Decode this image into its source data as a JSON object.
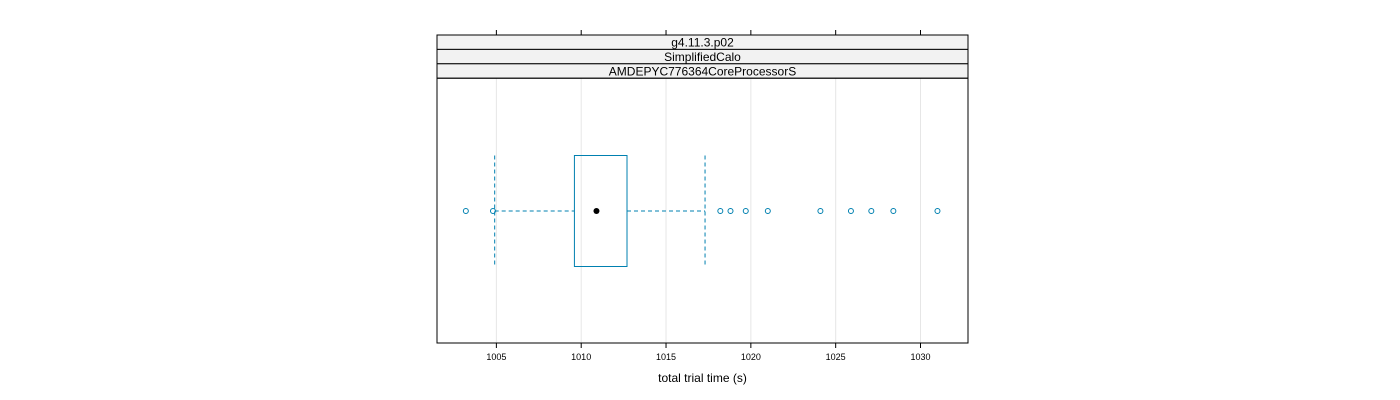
{
  "chart_data": {
    "type": "boxplot",
    "strips": [
      "g4.11.3.p02",
      "SimplifiedCalo",
      "AMDEPYC776364CoreProcessorS"
    ],
    "xlabel": "total trial time (s)",
    "xlim": [
      1001.5,
      1032.8
    ],
    "x_ticks": [
      1005,
      1010,
      1015,
      1020,
      1025,
      1030
    ],
    "x_tick_labels": [
      "1005",
      "1010",
      "1015",
      "1020",
      "1025",
      "1030"
    ],
    "grid": true,
    "box": {
      "whisker_low": 1004.9,
      "q1": 1009.6,
      "median": 1010.9,
      "q3": 1012.7,
      "whisker_high": 1017.3
    },
    "outliers": [
      1003.2,
      1004.8,
      1018.2,
      1018.8,
      1019.7,
      1021.0,
      1024.1,
      1025.9,
      1027.1,
      1028.4,
      1031.0
    ],
    "colors": {
      "box": "#0080b0",
      "median_dot": "#000000",
      "grid": "#e6e6e6",
      "strip_bg": "#f2f2f2",
      "frame": "#000000"
    }
  }
}
